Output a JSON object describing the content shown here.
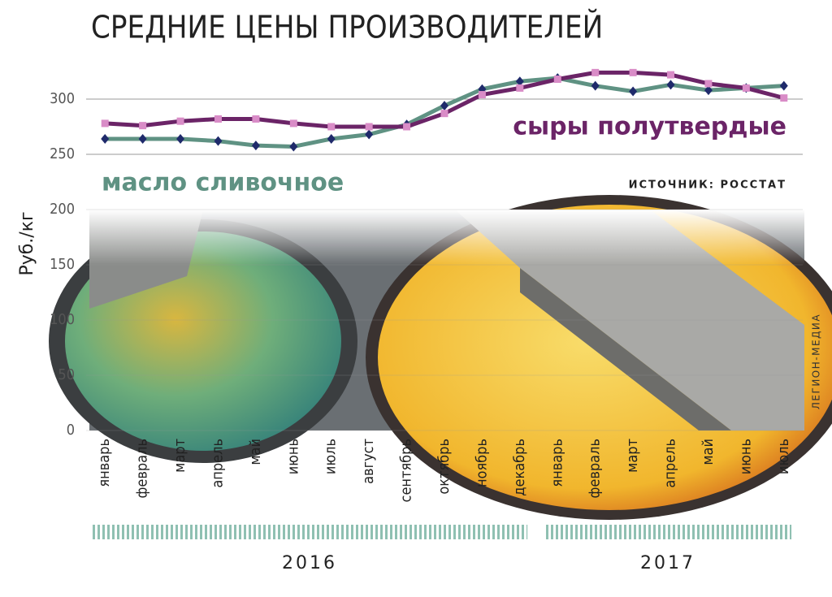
{
  "chart_data": {
    "type": "line",
    "title": "СРЕДНИЕ ЦЕНЫ ПРОИЗВОДИТЕЛЕЙ",
    "y_label": "Руб./кг",
    "source": "ИСТОЧНИК: РОССТАТ",
    "credit": "ЛЕГИОН-МЕДИА",
    "categories": [
      "январь",
      "февраль",
      "март",
      "апрель",
      "май",
      "июнь",
      "июль",
      "август",
      "сентябрь",
      "октябрь",
      "ноябрь",
      "декабрь",
      "январь",
      "февраль",
      "март",
      "апрель",
      "май",
      "июнь",
      "июль"
    ],
    "years": [
      "2016",
      "2017"
    ],
    "series": [
      {
        "name": "масло сливочное",
        "color": "#5f9283",
        "marker_color": "#1f2a6b",
        "values": [
          264,
          264,
          264,
          262,
          258,
          257,
          264,
          268,
          277,
          294,
          309,
          316,
          319,
          312,
          307,
          313,
          308,
          310,
          312
        ]
      },
      {
        "name": "сыры полутвердые",
        "color": "#6b2467",
        "marker_color": "#d98cc7",
        "values": [
          278,
          276,
          280,
          282,
          282,
          278,
          275,
          275,
          275,
          287,
          304,
          310,
          318,
          324,
          324,
          322,
          314,
          310,
          301
        ]
      }
    ],
    "ylim": [
      0,
      300
    ],
    "yticks": [
      0,
      50,
      100,
      150,
      200,
      250,
      300
    ],
    "grid": true
  }
}
